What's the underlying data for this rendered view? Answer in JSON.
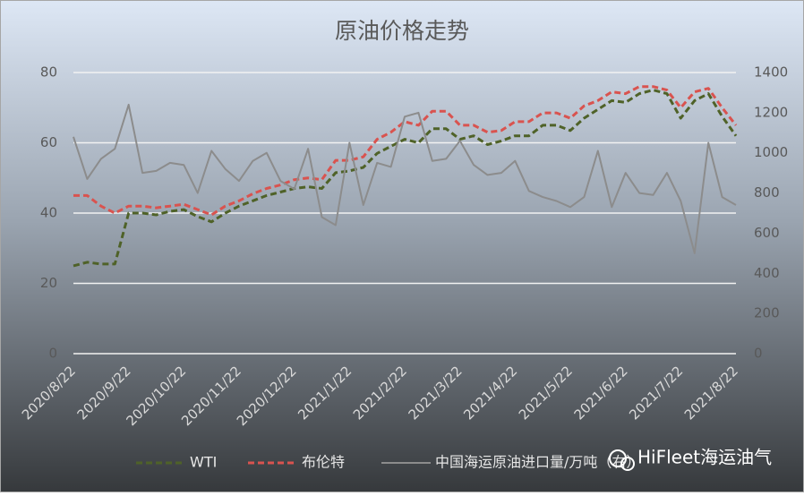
{
  "chart_data": {
    "type": "line",
    "title": "原油价格走势",
    "categories": [
      "2020/8/22",
      null,
      null,
      null,
      "2020/9/22",
      null,
      null,
      null,
      "2020/10/22",
      null,
      null,
      null,
      "2020/11/22",
      null,
      null,
      null,
      "2020/12/22",
      null,
      null,
      null,
      "2021/1/22",
      null,
      null,
      null,
      "2021/2/22",
      null,
      null,
      null,
      "2021/3/22",
      null,
      null,
      null,
      "2021/4/22",
      null,
      null,
      null,
      "2021/5/22",
      null,
      null,
      null,
      "2021/6/22",
      null,
      null,
      null,
      "2021/7/22",
      null,
      null,
      null,
      "2021/8/22"
    ],
    "series": [
      {
        "name": "WTI",
        "color": "#4f6228",
        "dash": true,
        "values": [
          25,
          26,
          25.5,
          25.5,
          40,
          40,
          39.5,
          40.5,
          41,
          39,
          37.5,
          40,
          42,
          43.5,
          45,
          46,
          47,
          47.5,
          47,
          51.5,
          52,
          53,
          57,
          59,
          61,
          60,
          64,
          64,
          61,
          62,
          59.5,
          60.5,
          62,
          62,
          65,
          65,
          63.5,
          67,
          69.5,
          72,
          71.5,
          74,
          75,
          74,
          67,
          72,
          74,
          67.5,
          62
        ]
      },
      {
        "name": "布伦特",
        "color": "#d9534f",
        "dash": true,
        "values": [
          45,
          45,
          42,
          40,
          42,
          42,
          41.5,
          42,
          42.5,
          41,
          39.5,
          42,
          43.5,
          45.5,
          47,
          48,
          49.5,
          50,
          49.5,
          55,
          55,
          56,
          61,
          63,
          66,
          65,
          69,
          69,
          65,
          65,
          63,
          63.5,
          66,
          66,
          68.5,
          68.5,
          67,
          70.5,
          72,
          74.5,
          74,
          76,
          76,
          75,
          70,
          74.5,
          75.5,
          70,
          65
        ]
      },
      {
        "name": "中国海运原油进口量/万吨（右）",
        "color": "#8c8c8c",
        "dash": false,
        "axis": "y2",
        "values": [
          1080,
          870,
          970,
          1020,
          1240,
          900,
          910,
          950,
          940,
          800,
          1010,
          920,
          860,
          960,
          1000,
          860,
          820,
          1020,
          680,
          640,
          1050,
          740,
          950,
          930,
          1180,
          1200,
          960,
          970,
          1060,
          940,
          890,
          900,
          960,
          810,
          780,
          760,
          730,
          780,
          1010,
          730,
          900,
          800,
          790,
          900,
          760,
          500,
          1050,
          780,
          740
        ]
      }
    ],
    "ylim": [
      0,
      80
    ],
    "yticks": [
      0,
      20,
      40,
      60,
      80
    ],
    "y2lim": [
      0,
      1400
    ],
    "y2ticks": [
      0,
      200,
      400,
      600,
      800,
      1000,
      1200,
      1400
    ],
    "grid": true,
    "legend": "bottom",
    "watermark": "HiFleet海运油气"
  }
}
